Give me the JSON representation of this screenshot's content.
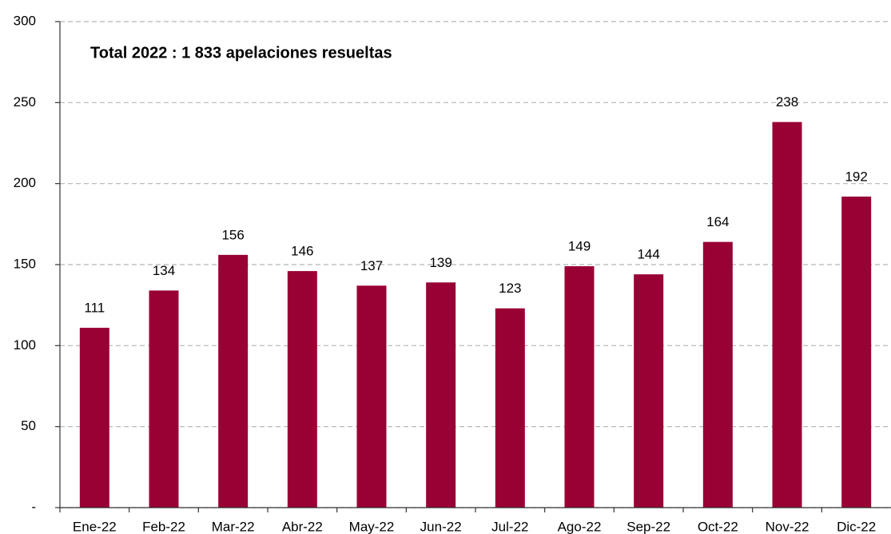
{
  "chart_data": {
    "type": "bar",
    "annotation": "Total 2022 : 1 833 apelaciones resueltas",
    "categories": [
      "Ene-22",
      "Feb-22",
      "Mar-22",
      "Abr-22",
      "May-22",
      "Jun-22",
      "Jul-22",
      "Ago-22",
      "Sep-22",
      "Oct-22",
      "Nov-22",
      "Dic-22"
    ],
    "values": [
      111,
      134,
      156,
      146,
      137,
      139,
      123,
      149,
      144,
      164,
      238,
      192
    ],
    "color": "#990033",
    "ylim": [
      0,
      300
    ],
    "yticks": [
      {
        "value": 0,
        "label": "-"
      },
      50,
      100,
      150,
      200,
      250,
      300
    ],
    "grid": true
  }
}
